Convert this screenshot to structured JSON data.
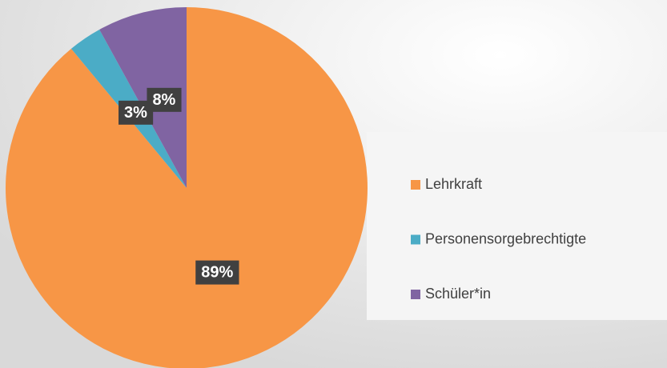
{
  "chart_data": {
    "type": "pie",
    "categories": [
      "Lehrkraft",
      "Personensorgebrechtigte",
      "Schüler*in"
    ],
    "values": [
      89,
      3,
      8
    ],
    "value_labels": [
      "89%",
      "3%",
      "8%"
    ],
    "colors": [
      "#F79646",
      "#4BACC6",
      "#8064A2"
    ],
    "legend": "right"
  }
}
